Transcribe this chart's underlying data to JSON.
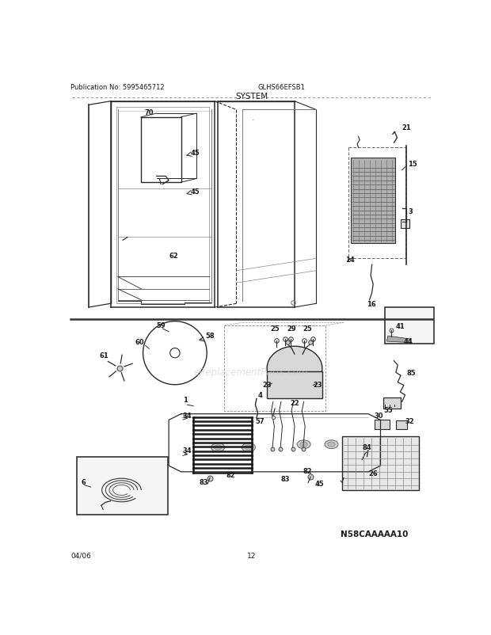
{
  "pub_no": "Publication No: 5995465712",
  "model": "GLHS66EFSB1",
  "section_title": "SYSTEM",
  "footer_left": "04/06",
  "footer_center": "12",
  "watermark": "eReplacementParts.com",
  "catalog_no": "N58CAAAAA10",
  "bg_color": "#ffffff",
  "lc": "#2a2a2a",
  "tc": "#1a1a1a"
}
